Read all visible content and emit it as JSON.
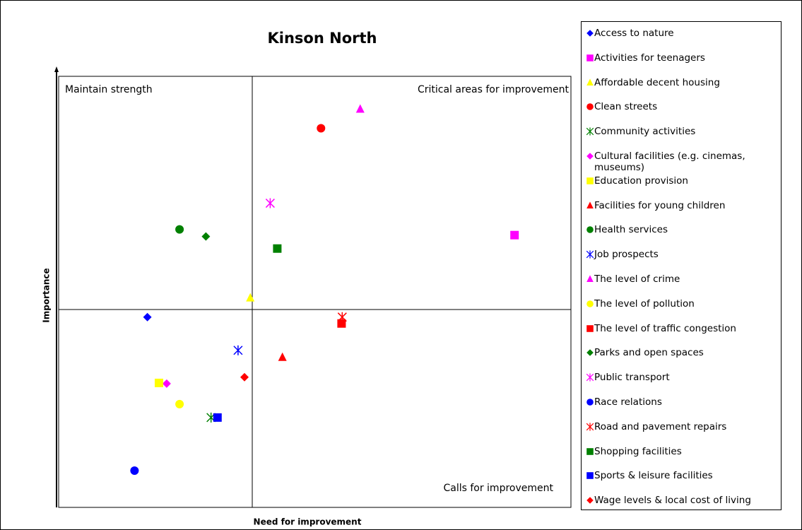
{
  "chart_data": {
    "type": "scatter",
    "title": "Kinson North",
    "x_label": "Need for improvement",
    "y_label": "Importance",
    "annotations": [
      "Maintain strength",
      "Critical areas for improvement",
      "Calls for improvement"
    ],
    "xlim": [
      -3,
      5
    ],
    "ylim": [
      -6,
      7
    ],
    "series": [
      {
        "name": "Access to nature",
        "color": "#0000ff",
        "marker": "diamond",
        "x": [
          -1.62
        ],
        "values": [
          -0.23
        ]
      },
      {
        "name": "Activities for teenagers",
        "color": "#ff00ff",
        "marker": "square",
        "x": [
          4.09
        ],
        "values": [
          2.21
        ]
      },
      {
        "name": "Affordable decent housing",
        "color": "#ffff00",
        "marker": "triangle",
        "x": [
          -0.02
        ],
        "values": [
          0.34
        ]
      },
      {
        "name": "Clean streets",
        "color": "#ff0000",
        "marker": "circle",
        "x": [
          1.08
        ],
        "values": [
          5.39
        ]
      },
      {
        "name": "Community activities",
        "color": "#008000",
        "marker": "star",
        "x": [
          -0.63
        ],
        "values": [
          -3.22
        ]
      },
      {
        "name": "Cultural facilities (e.g. cinemas, museums)",
        "color": "#ff00ff",
        "marker": "diamond",
        "x": [
          -1.32
        ],
        "values": [
          -2.21
        ]
      },
      {
        "name": "Education provision",
        "color": "#ffff00",
        "marker": "square",
        "x": [
          -1.44
        ],
        "values": [
          -2.19
        ]
      },
      {
        "name": "Facilities for young children",
        "color": "#ff0000",
        "marker": "triangle",
        "x": [
          0.48
        ],
        "values": [
          -1.43
        ]
      },
      {
        "name": "Health services",
        "color": "#008000",
        "marker": "circle",
        "x": [
          -1.12
        ],
        "values": [
          2.38
        ]
      },
      {
        "name": "Job prospects",
        "color": "#0000ff",
        "marker": "star",
        "x": [
          -0.21
        ],
        "values": [
          -1.22
        ]
      },
      {
        "name": "The level of crime",
        "color": "#ff00ff",
        "marker": "triangle",
        "x": [
          1.69
        ],
        "values": [
          5.96
        ]
      },
      {
        "name": "The level of pollution",
        "color": "#ffff00",
        "marker": "circle",
        "x": [
          -1.12
        ],
        "values": [
          -2.82
        ]
      },
      {
        "name": "The level of traffic congestion",
        "color": "#ff0000",
        "marker": "square",
        "x": [
          1.4
        ],
        "values": [
          -0.42
        ]
      },
      {
        "name": "Parks and open spaces",
        "color": "#008000",
        "marker": "diamond",
        "x": [
          -0.71
        ],
        "values": [
          2.17
        ]
      },
      {
        "name": "Public transport",
        "color": "#ff00ff",
        "marker": "star",
        "x": [
          0.29
        ],
        "values": [
          3.16
        ]
      },
      {
        "name": "Race relations",
        "color": "#0000ff",
        "marker": "circle",
        "x": [
          -1.82
        ],
        "values": [
          -4.8
        ]
      },
      {
        "name": "Road and pavement repairs",
        "color": "#ff0000",
        "marker": "star",
        "x": [
          1.41
        ],
        "values": [
          -0.23
        ]
      },
      {
        "name": "Shopping facilities",
        "color": "#008000",
        "marker": "square",
        "x": [
          0.4
        ],
        "values": [
          1.81
        ]
      },
      {
        "name": "Sports & leisure facilities",
        "color": "#0000ff",
        "marker": "square",
        "x": [
          -0.53
        ],
        "values": [
          -3.22
        ]
      },
      {
        "name": "Wage levels & local cost of living",
        "color": "#ff0000",
        "marker": "diamond",
        "x": [
          -0.11
        ],
        "values": [
          -2.02
        ]
      }
    ]
  }
}
